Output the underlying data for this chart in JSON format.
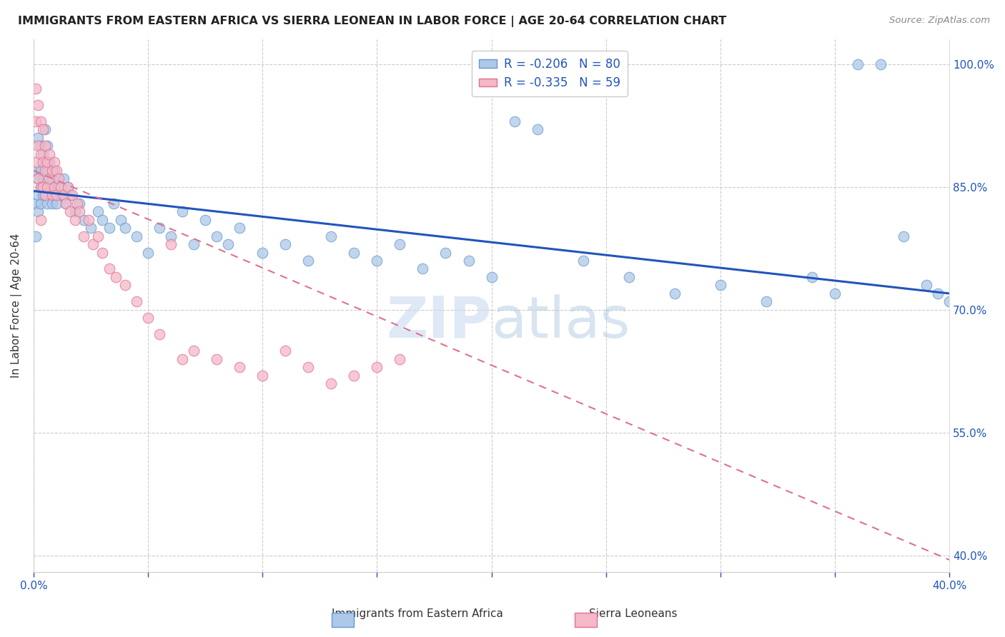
{
  "title": "IMMIGRANTS FROM EASTERN AFRICA VS SIERRA LEONEAN IN LABOR FORCE | AGE 20-64 CORRELATION CHART",
  "source": "Source: ZipAtlas.com",
  "ylabel": "In Labor Force | Age 20-64",
  "xlim": [
    0.0,
    0.4
  ],
  "ylim": [
    0.38,
    1.03
  ],
  "xtick_pos": [
    0.0,
    0.05,
    0.1,
    0.15,
    0.2,
    0.25,
    0.3,
    0.35,
    0.4
  ],
  "xticklabels": [
    "0.0%",
    "",
    "",
    "",
    "",
    "",
    "",
    "",
    "40.0%"
  ],
  "ytick_positions": [
    0.4,
    0.55,
    0.7,
    0.85,
    1.0
  ],
  "yticklabels": [
    "40.0%",
    "55.0%",
    "70.0%",
    "85.0%",
    "100.0%"
  ],
  "blue_R": -0.206,
  "blue_N": 80,
  "pink_R": -0.335,
  "pink_N": 59,
  "blue_color": "#adc8e8",
  "blue_edge": "#6699cc",
  "pink_color": "#f4b8c8",
  "pink_edge": "#e07090",
  "trendline_blue_color": "#2255bb",
  "trendline_pink_color": "#e07090",
  "watermark": "ZIPatlas",
  "blue_trend_x0": 0.0,
  "blue_trend_y0": 0.845,
  "blue_trend_x1": 0.4,
  "blue_trend_y1": 0.72,
  "pink_trend_x0": 0.0,
  "pink_trend_y0": 0.87,
  "pink_trend_x1": 0.4,
  "pink_trend_y1": 0.395,
  "blue_scatter_x": [
    0.001,
    0.001,
    0.001,
    0.002,
    0.002,
    0.002,
    0.002,
    0.003,
    0.003,
    0.003,
    0.003,
    0.004,
    0.004,
    0.004,
    0.005,
    0.005,
    0.005,
    0.006,
    0.006,
    0.006,
    0.007,
    0.007,
    0.008,
    0.008,
    0.009,
    0.009,
    0.01,
    0.01,
    0.011,
    0.012,
    0.013,
    0.014,
    0.015,
    0.016,
    0.018,
    0.02,
    0.022,
    0.025,
    0.028,
    0.03,
    0.033,
    0.035,
    0.038,
    0.04,
    0.045,
    0.05,
    0.055,
    0.06,
    0.065,
    0.07,
    0.075,
    0.08,
    0.085,
    0.09,
    0.1,
    0.11,
    0.12,
    0.13,
    0.14,
    0.15,
    0.16,
    0.17,
    0.18,
    0.19,
    0.2,
    0.21,
    0.22,
    0.24,
    0.26,
    0.28,
    0.3,
    0.32,
    0.34,
    0.35,
    0.36,
    0.37,
    0.38,
    0.39,
    0.395,
    0.4
  ],
  "blue_scatter_y": [
    0.87,
    0.83,
    0.79,
    0.91,
    0.86,
    0.84,
    0.82,
    0.9,
    0.87,
    0.85,
    0.83,
    0.89,
    0.86,
    0.84,
    0.92,
    0.88,
    0.84,
    0.9,
    0.87,
    0.83,
    0.88,
    0.85,
    0.86,
    0.83,
    0.87,
    0.84,
    0.86,
    0.83,
    0.85,
    0.84,
    0.86,
    0.83,
    0.85,
    0.84,
    0.82,
    0.83,
    0.81,
    0.8,
    0.82,
    0.81,
    0.8,
    0.83,
    0.81,
    0.8,
    0.79,
    0.77,
    0.8,
    0.79,
    0.82,
    0.78,
    0.81,
    0.79,
    0.78,
    0.8,
    0.77,
    0.78,
    0.76,
    0.79,
    0.77,
    0.76,
    0.78,
    0.75,
    0.77,
    0.76,
    0.74,
    0.93,
    0.92,
    0.76,
    0.74,
    0.72,
    0.73,
    0.71,
    0.74,
    0.72,
    1.0,
    1.0,
    0.79,
    0.73,
    0.72,
    0.71
  ],
  "pink_scatter_x": [
    0.001,
    0.001,
    0.001,
    0.002,
    0.002,
    0.002,
    0.003,
    0.003,
    0.003,
    0.003,
    0.004,
    0.004,
    0.004,
    0.005,
    0.005,
    0.005,
    0.006,
    0.006,
    0.007,
    0.007,
    0.008,
    0.008,
    0.009,
    0.009,
    0.01,
    0.01,
    0.011,
    0.012,
    0.013,
    0.014,
    0.015,
    0.016,
    0.017,
    0.018,
    0.019,
    0.02,
    0.022,
    0.024,
    0.026,
    0.028,
    0.03,
    0.033,
    0.036,
    0.04,
    0.045,
    0.05,
    0.055,
    0.06,
    0.065,
    0.07,
    0.08,
    0.09,
    0.1,
    0.11,
    0.12,
    0.13,
    0.14,
    0.15,
    0.16
  ],
  "pink_scatter_y": [
    0.97,
    0.93,
    0.88,
    0.95,
    0.9,
    0.86,
    0.93,
    0.89,
    0.85,
    0.81,
    0.92,
    0.88,
    0.85,
    0.9,
    0.87,
    0.84,
    0.88,
    0.85,
    0.89,
    0.86,
    0.87,
    0.84,
    0.88,
    0.85,
    0.87,
    0.84,
    0.86,
    0.85,
    0.84,
    0.83,
    0.85,
    0.82,
    0.84,
    0.81,
    0.83,
    0.82,
    0.79,
    0.81,
    0.78,
    0.79,
    0.77,
    0.75,
    0.74,
    0.73,
    0.71,
    0.69,
    0.67,
    0.78,
    0.64,
    0.65,
    0.64,
    0.63,
    0.62,
    0.65,
    0.63,
    0.61,
    0.62,
    0.63,
    0.64
  ]
}
